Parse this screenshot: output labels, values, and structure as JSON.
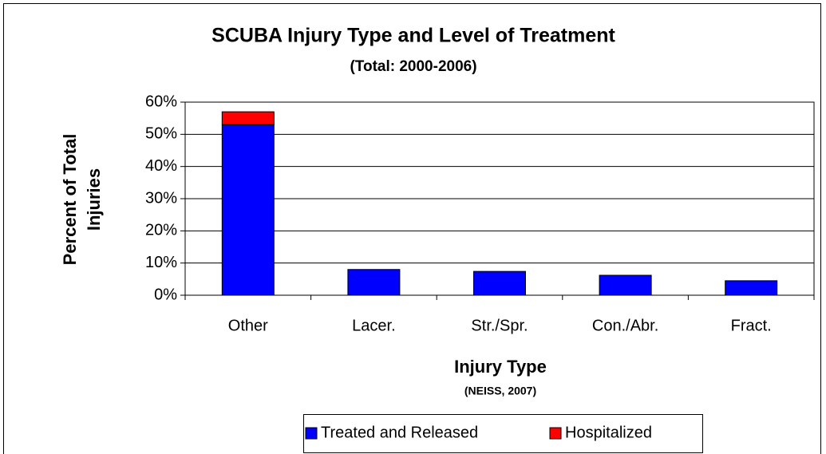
{
  "chart_data": {
    "type": "stacked_bar",
    "title": "SCUBA Injury Type and Level of Treatment",
    "subtitle": "(Total: 2000-2006)",
    "x_label": "Injury Type",
    "x_sublabel": "(NEISS, 2007)",
    "y_label": [
      "Percent of Total",
      "Injuries"
    ],
    "categories": [
      "Other",
      "Lacer.",
      "Str./Spr.",
      "Con./Abr.",
      "Fract."
    ],
    "series": [
      {
        "name": "Treated and Released",
        "color": "#0000ff",
        "values": [
          53,
          8,
          7.4,
          6.2,
          4.5
        ]
      },
      {
        "name": "Hospitalized",
        "color": "#ff0000",
        "values": [
          4,
          0,
          0,
          0,
          0
        ]
      }
    ],
    "ylim": [
      0,
      60
    ],
    "yticks": [
      {
        "value": 0,
        "label": "0%"
      },
      {
        "value": 10,
        "label": "10%"
      },
      {
        "value": 20,
        "label": "20%"
      },
      {
        "value": 30,
        "label": "30%"
      },
      {
        "value": 40,
        "label": "40%"
      },
      {
        "value": 50,
        "label": "50%"
      },
      {
        "value": 60,
        "label": "60%"
      }
    ],
    "grid": true,
    "legend": "bottom"
  }
}
